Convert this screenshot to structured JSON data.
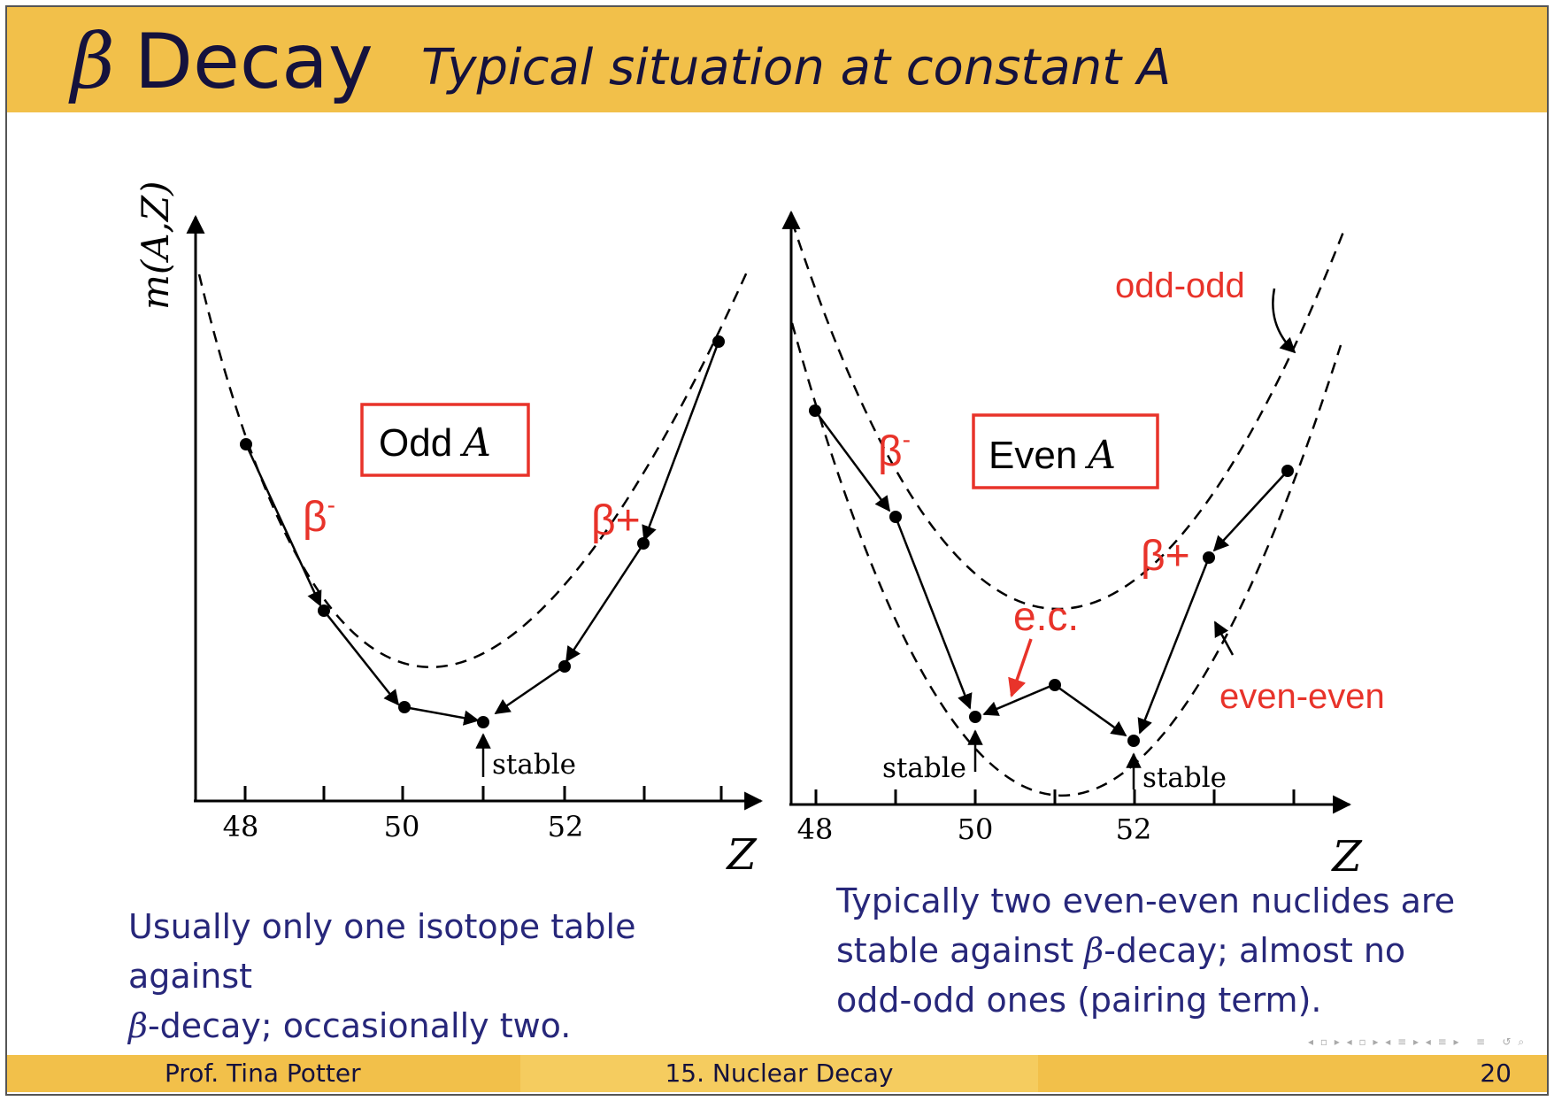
{
  "header": {
    "beta_symbol": "β",
    "title": "Decay",
    "subtitle": "Typical situation at constant A"
  },
  "diagram": {
    "y_axis_label": "m(A,Z)",
    "left": {
      "box_label_text": "Odd",
      "box_label_var": "A",
      "x_axis_label": "Z",
      "tick_labels": [
        "48",
        "50",
        "52"
      ],
      "beta_minus": "β",
      "beta_minus_sup": "-",
      "beta_plus": "β+",
      "stable_label": "stable"
    },
    "right": {
      "box_label_text": "Even",
      "box_label_var": "A",
      "x_axis_label": "Z",
      "tick_labels": [
        "48",
        "50",
        "52"
      ],
      "beta_minus": "β",
      "beta_minus_sup": "-",
      "beta_plus": "β+",
      "ec_label": "e.c.",
      "odd_odd_label": "odd-odd",
      "even_even_label": "even-even",
      "stable_label_1": "stable",
      "stable_label_2": "stable"
    }
  },
  "captions": {
    "left_line1": "Usually only one isotope table against",
    "left_line2_beta": "β",
    "left_line2_rest": "-decay; occasionally two.",
    "right_line1": "Typically two even-even nuclides are",
    "right_line2_pre": "stable against ",
    "right_line2_beta": "β",
    "right_line2_rest": "-decay; almost no",
    "right_line3": "odd-odd ones (pairing term)."
  },
  "footer": {
    "author": "Prof. Tina Potter",
    "section": "15. Nuclear Decay",
    "page": "20"
  },
  "colors": {
    "header_bar": "#F2C04A",
    "title_text": "#15123d",
    "caption_text": "#27277a",
    "annotation_red": "#e8332a"
  }
}
